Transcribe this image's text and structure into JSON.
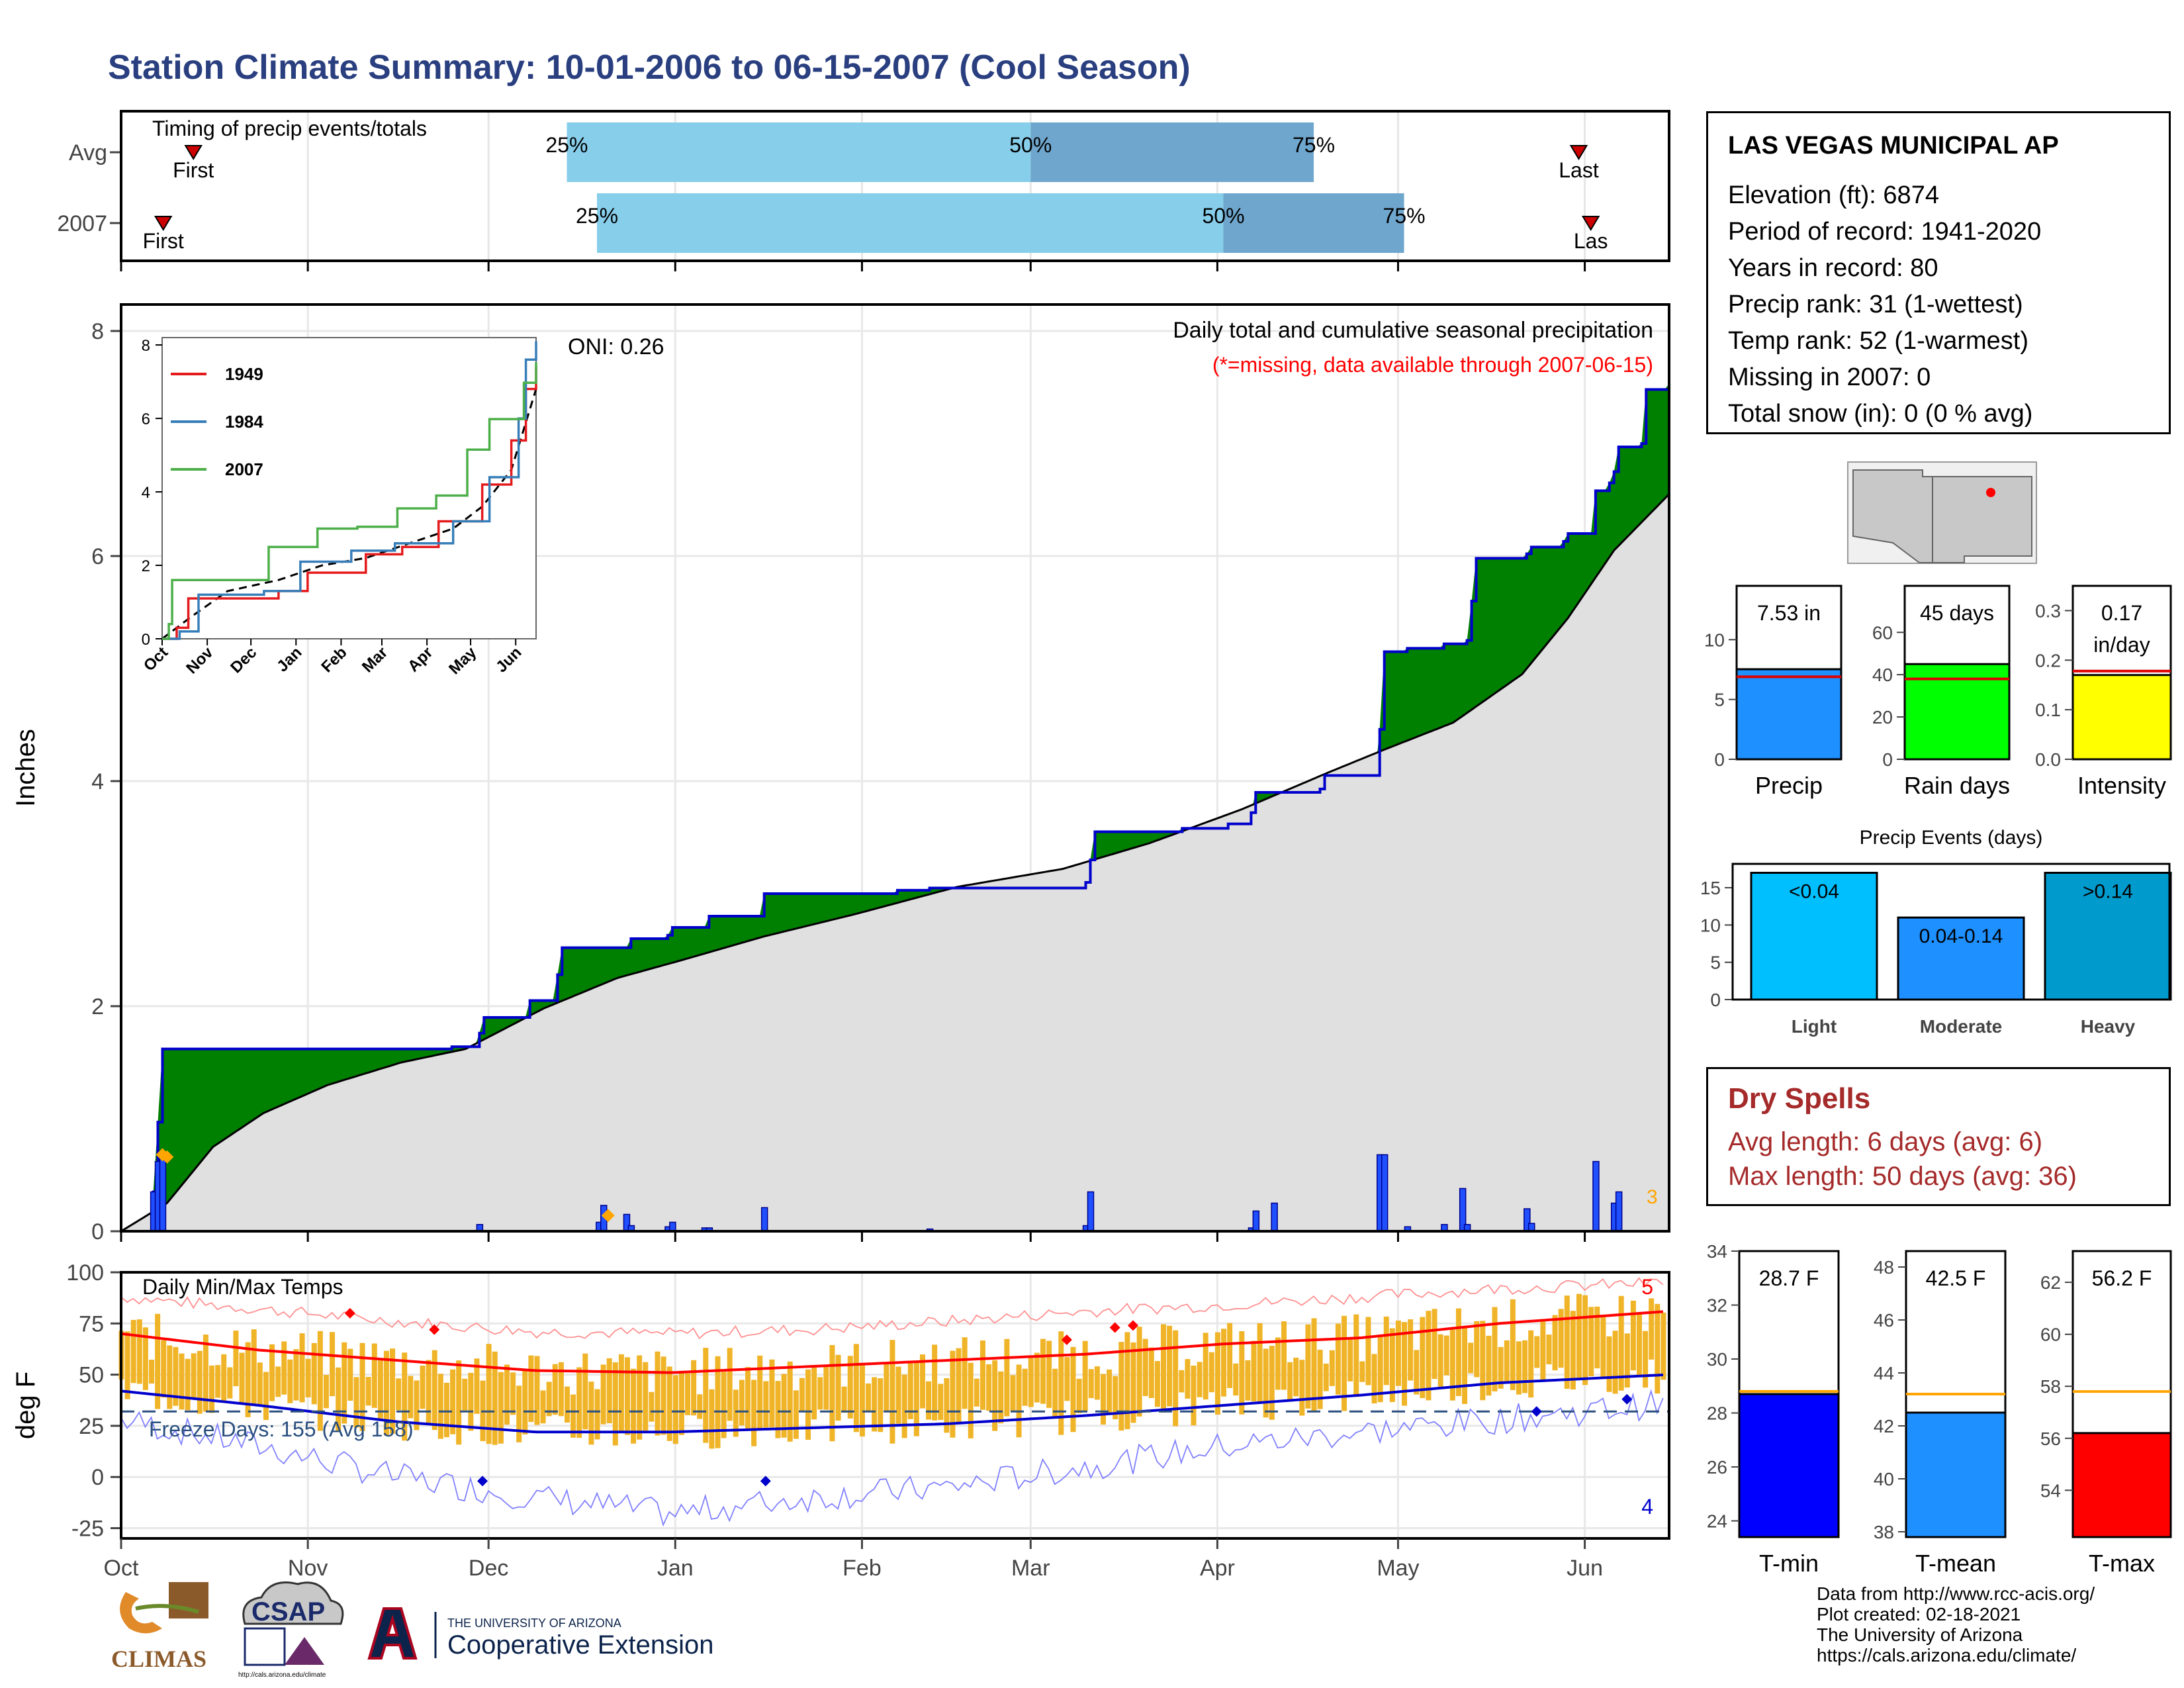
{
  "title": "Station Climate Summary: 10-01-2006 to 06-15-2007 (Cool Season)",
  "colors": {
    "title": "#2a3f7f",
    "above_avg": "#008000",
    "below_avg": "#7a5210",
    "avg_fill": "#e0e0e0",
    "daily_bar": "#1f4fff",
    "timing_light": "#87ceeb",
    "timing_dark": "#6fa6cd",
    "temp_bar": "#f0b428",
    "tmax_line": "#ff0000",
    "tmin_line": "#0000cd"
  },
  "timing_panel": {
    "label": "Timing of precip events/totals",
    "rows": [
      {
        "name": "Avg",
        "first_label": "First",
        "last_label": "Last",
        "p25": "25%",
        "p50": "50%",
        "p75": "75%",
        "first_day": 12,
        "p25_day": 74,
        "p50_day": 151,
        "p75_day": 198,
        "last_day": 242
      },
      {
        "name": "2007",
        "first_label": "First",
        "last_label": "Las",
        "p25": "25%",
        "p50": "50%",
        "p75": "75%",
        "first_day": 7,
        "p25_day": 79,
        "p50_day": 183,
        "p75_day": 213,
        "last_day": 244
      }
    ]
  },
  "precip_panel": {
    "ylabel": "Inches",
    "oni": "ONI: 0.26",
    "subtitle": "Daily total and cumulative seasonal precipitation",
    "note": "(*=missing, data available through 2007-06-15)",
    "marker_label": "3"
  },
  "inset": {
    "legend": [
      "1949",
      "1984",
      "2007"
    ],
    "legend_colors": [
      "#e41a1c",
      "#377eb8",
      "#4daf4a"
    ]
  },
  "temp_panel": {
    "ylabel": "deg F",
    "label": "Daily Min/Max Temps",
    "freeze": "Freeze Days: 155 (Avg 158)",
    "count_high": "5",
    "count_low": "4"
  },
  "station": {
    "name": "LAS VEGAS MUNICIPAL AP",
    "lines": [
      "Elevation (ft): 6874",
      "Period of record: 1941-2020",
      "Years in record: 80",
      "Precip rank: 31 (1-wettest)",
      "Temp rank: 52 (1-warmest)",
      "Missing in 2007: 0",
      "Total snow (in): 0 (0 % avg)"
    ]
  },
  "summary_bars": {
    "precip": {
      "label": "Precip",
      "value_label": "7.53 in",
      "value": 7.53,
      "avg": 6.9
    },
    "rain_days": {
      "label": "Rain days",
      "value_label": "45 days",
      "value": 45,
      "avg": 38
    },
    "intensity": {
      "label": "Intensity",
      "value_label1": "0.17",
      "value_label2": "in/day",
      "value": 0.17,
      "avg": 0.178
    }
  },
  "precip_events": {
    "title": "Precip Events (days)",
    "bars": [
      {
        "label": "Light",
        "value_label": "<0.04",
        "value": 17,
        "color": "#00bfff"
      },
      {
        "label": "Moderate",
        "value_label": "0.04-0.14",
        "value": 11,
        "color": "#1e90ff"
      },
      {
        "label": "Heavy",
        "value_label": ">0.14",
        "value": 17,
        "color": "#009acd"
      }
    ]
  },
  "dry_spells": {
    "title": "Dry Spells",
    "avg": "Avg length: 6 days (avg: 6)",
    "max": "Max length: 50 days (avg: 36)"
  },
  "temp_bars": {
    "tmin": {
      "label": "T-min",
      "value_label": "28.7 F",
      "value": 28.7,
      "avg": 28.8,
      "color": "#0000ff"
    },
    "tmean": {
      "label": "T-mean",
      "value_label": "42.5 F",
      "value": 42.5,
      "avg": 43.2,
      "color": "#1e90ff"
    },
    "tmax": {
      "label": "T-max",
      "value_label": "56.2 F",
      "value": 56.2,
      "avg": 57.8,
      "color": "#ff0000"
    }
  },
  "credits": [
    "Data from http://www.rcc-acis.org/",
    "Plot created: 02-18-2021",
    "The University of Arizona",
    "https://cals.arizona.edu/climate/"
  ],
  "logos": {
    "climas": "CLIMAS",
    "csap": "CSAP",
    "csap_url": "http://cals.arizona.edu/climate",
    "ua_small": "THE UNIVERSITY OF ARIZONA",
    "ua_big": "Cooperative Extension"
  },
  "chart_data": {
    "type": "area",
    "x_range": [
      "2006-10-01",
      "2007-06-15"
    ],
    "month_ticks": [
      "Oct",
      "Nov",
      "Dec",
      "Jan",
      "Feb",
      "Mar",
      "Apr",
      "May",
      "Jun"
    ],
    "ylim_precip": [
      0,
      8
    ],
    "yticks_precip": [
      0,
      2,
      4,
      6,
      8
    ],
    "cumulative_observed": [
      [
        0,
        0
      ],
      [
        6,
        0
      ],
      [
        7,
        0.35
      ],
      [
        8,
        0.97
      ],
      [
        9,
        1.62
      ],
      [
        71,
        1.62
      ],
      [
        72,
        1.64
      ],
      [
        78,
        1.76
      ],
      [
        79,
        1.9
      ],
      [
        88,
        1.9
      ],
      [
        89,
        2.05
      ],
      [
        94,
        2.05
      ],
      [
        95,
        2.28
      ],
      [
        96,
        2.52
      ],
      [
        110,
        2.52
      ],
      [
        111,
        2.6
      ],
      [
        119,
        2.63
      ],
      [
        120,
        2.7
      ],
      [
        127,
        2.7
      ],
      [
        128,
        2.8
      ],
      [
        139,
        2.8
      ],
      [
        140,
        3.0
      ],
      [
        168,
        3.0
      ],
      [
        169,
        3.03
      ],
      [
        175,
        3.03
      ],
      [
        176,
        3.05
      ],
      [
        209,
        3.05
      ],
      [
        210,
        3.1
      ],
      [
        211,
        3.3
      ],
      [
        212,
        3.55
      ],
      [
        230,
        3.55
      ],
      [
        231,
        3.58
      ],
      [
        240,
        3.58
      ],
      [
        241,
        3.62
      ],
      [
        245,
        3.62
      ],
      [
        246,
        3.72
      ],
      [
        247,
        3.9
      ],
      [
        260,
        3.9
      ],
      [
        261,
        3.93
      ],
      [
        262,
        4.05
      ],
      [
        273,
        4.05
      ],
      [
        274,
        4.46
      ],
      [
        275,
        5.15
      ],
      [
        279,
        5.15
      ],
      [
        280,
        5.18
      ],
      [
        287,
        5.18
      ],
      [
        288,
        5.22
      ],
      [
        293,
        5.25
      ],
      [
        294,
        5.6
      ],
      [
        295,
        5.98
      ],
      [
        306,
        6.02
      ],
      [
        307,
        6.08
      ],
      [
        314,
        6.13
      ],
      [
        315,
        6.2
      ],
      [
        320,
        6.2
      ],
      [
        321,
        6.58
      ],
      [
        324,
        6.65
      ],
      [
        325,
        6.75
      ],
      [
        326,
        6.97
      ],
      [
        331,
        7.0
      ],
      [
        332,
        7.48
      ],
      [
        337,
        7.53
      ]
    ],
    "cumulative_average": [
      [
        0,
        0
      ],
      [
        10,
        0.25
      ],
      [
        20,
        0.75
      ],
      [
        31,
        1.05
      ],
      [
        45,
        1.3
      ],
      [
        61,
        1.5
      ],
      [
        75,
        1.62
      ],
      [
        92,
        1.98
      ],
      [
        108,
        2.25
      ],
      [
        123,
        2.42
      ],
      [
        140,
        2.62
      ],
      [
        160,
        2.82
      ],
      [
        182,
        3.06
      ],
      [
        205,
        3.22
      ],
      [
        224,
        3.45
      ],
      [
        244,
        3.75
      ],
      [
        263,
        4.08
      ],
      [
        275,
        4.28
      ],
      [
        290,
        4.52
      ],
      [
        305,
        4.95
      ],
      [
        315,
        5.45
      ],
      [
        325,
        6.05
      ],
      [
        337,
        6.55
      ]
    ],
    "daily_precip_bars": [
      [
        7,
        0.35
      ],
      [
        8,
        0.62
      ],
      [
        9,
        0.65
      ],
      [
        78,
        0.06
      ],
      [
        104,
        0.08
      ],
      [
        105,
        0.23
      ],
      [
        110,
        0.15
      ],
      [
        111,
        0.05
      ],
      [
        119,
        0.04
      ],
      [
        120,
        0.08
      ],
      [
        127,
        0.03
      ],
      [
        128,
        0.03
      ],
      [
        140,
        0.21
      ],
      [
        176,
        0.02
      ],
      [
        210,
        0.05
      ],
      [
        211,
        0.35
      ],
      [
        246,
        0.03
      ],
      [
        247,
        0.18
      ],
      [
        251,
        0.25
      ],
      [
        274,
        0.68
      ],
      [
        275,
        0.68
      ],
      [
        280,
        0.04
      ],
      [
        288,
        0.06
      ],
      [
        292,
        0.38
      ],
      [
        293,
        0.06
      ],
      [
        306,
        0.2
      ],
      [
        307,
        0.07
      ],
      [
        321,
        0.62
      ],
      [
        325,
        0.25
      ],
      [
        326,
        0.35
      ]
    ],
    "ylim_temp": [
      -30,
      100
    ],
    "yticks_temp": [
      -25,
      0,
      25,
      50,
      75,
      100
    ],
    "tmax_mean_line": [
      [
        0,
        70
      ],
      [
        30,
        62
      ],
      [
        60,
        57
      ],
      [
        90,
        52
      ],
      [
        120,
        51
      ],
      [
        150,
        54
      ],
      [
        180,
        57
      ],
      [
        210,
        60
      ],
      [
        240,
        65
      ],
      [
        270,
        68
      ],
      [
        300,
        75
      ],
      [
        337,
        81
      ]
    ],
    "tmin_mean_line": [
      [
        0,
        42
      ],
      [
        30,
        35
      ],
      [
        60,
        27
      ],
      [
        90,
        22
      ],
      [
        120,
        22
      ],
      [
        150,
        24
      ],
      [
        180,
        26
      ],
      [
        210,
        30
      ],
      [
        240,
        35
      ],
      [
        270,
        40
      ],
      [
        300,
        46
      ],
      [
        337,
        50
      ]
    ],
    "record_high_line": [
      [
        0,
        88
      ],
      [
        30,
        82
      ],
      [
        60,
        76
      ],
      [
        90,
        71
      ],
      [
        120,
        70
      ],
      [
        150,
        72
      ],
      [
        180,
        76
      ],
      [
        210,
        81
      ],
      [
        240,
        84
      ],
      [
        270,
        88
      ],
      [
        300,
        92
      ],
      [
        337,
        95
      ]
    ],
    "record_low_line": [
      [
        0,
        28
      ],
      [
        30,
        15
      ],
      [
        60,
        0
      ],
      [
        90,
        -10
      ],
      [
        120,
        -18
      ],
      [
        150,
        -10
      ],
      [
        180,
        -5
      ],
      [
        210,
        5
      ],
      [
        240,
        15
      ],
      [
        270,
        22
      ],
      [
        300,
        28
      ],
      [
        337,
        36
      ]
    ],
    "freeze_line": 32
  }
}
